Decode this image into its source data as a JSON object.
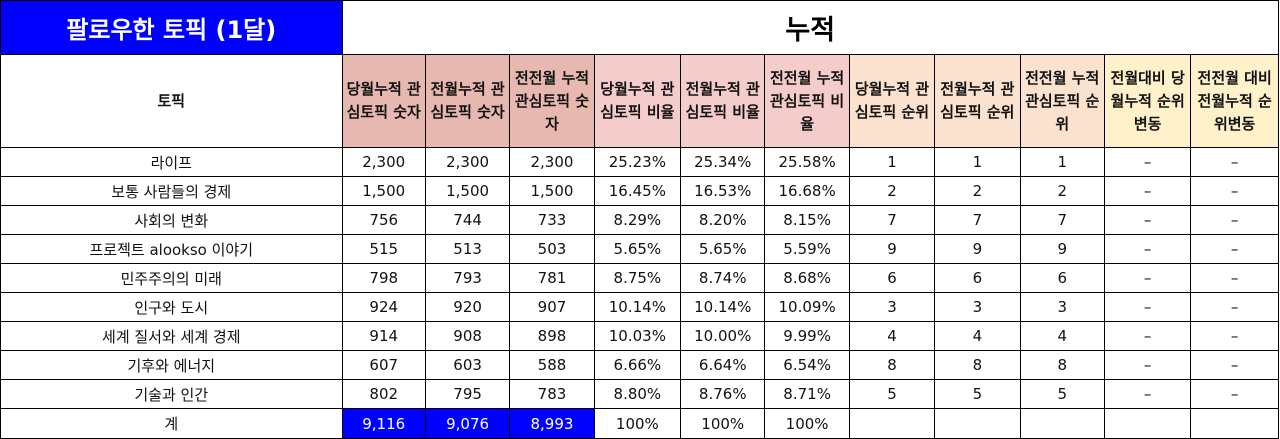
{
  "banner": "팔로우한 토픽 (1달)",
  "section_title": "누적",
  "columns": [
    {
      "key": "topic",
      "label": "토픽",
      "group": "topic"
    },
    {
      "key": "cur_count",
      "label": "당월누적 관심토픽 숫자",
      "group": "count"
    },
    {
      "key": "prev_count",
      "label": "전월누적 관심토픽 숫자",
      "group": "count"
    },
    {
      "key": "prev2_count",
      "label": "전전월 누적 관심토픽 숫자",
      "group": "count"
    },
    {
      "key": "cur_ratio",
      "label": "당월누적 관심토픽 비율",
      "group": "ratio"
    },
    {
      "key": "prev_ratio",
      "label": "전월누적 관심토픽 비율",
      "group": "ratio"
    },
    {
      "key": "prev2_ratio",
      "label": "전전월 누적 관심토픽 비율",
      "group": "ratio"
    },
    {
      "key": "cur_rank",
      "label": "당월누적 관심토픽 순위",
      "group": "rank"
    },
    {
      "key": "prev_rank",
      "label": "전월누적 관심토픽 순위",
      "group": "rank"
    },
    {
      "key": "prev2_rank",
      "label": "전전월 누적 관심토픽 순위",
      "group": "rank"
    },
    {
      "key": "change1",
      "label": "전월대비 당월누적 순위변동",
      "group": "change"
    },
    {
      "key": "change2",
      "label": "전전월 대비 전월누적 순위변동",
      "group": "change"
    }
  ],
  "rows": [
    [
      "라이프",
      "2,300",
      "2,300",
      "2,300",
      "25.23%",
      "25.34%",
      "25.58%",
      "1",
      "1",
      "1",
      "–",
      "–"
    ],
    [
      "보통 사람들의 경제",
      "1,500",
      "1,500",
      "1,500",
      "16.45%",
      "16.53%",
      "16.68%",
      "2",
      "2",
      "2",
      "–",
      "–"
    ],
    [
      "사회의 변화",
      "756",
      "744",
      "733",
      "8.29%",
      "8.20%",
      "8.15%",
      "7",
      "7",
      "7",
      "–",
      "–"
    ],
    [
      "프로젝트 alookso 이야기",
      "515",
      "513",
      "503",
      "5.65%",
      "5.65%",
      "5.59%",
      "9",
      "9",
      "9",
      "–",
      "–"
    ],
    [
      "민주주의의 미래",
      "798",
      "793",
      "781",
      "8.75%",
      "8.74%",
      "8.68%",
      "6",
      "6",
      "6",
      "–",
      "–"
    ],
    [
      "인구와 도시",
      "924",
      "920",
      "907",
      "10.14%",
      "10.14%",
      "10.09%",
      "3",
      "3",
      "3",
      "–",
      "–"
    ],
    [
      "세계 질서와 세계 경제",
      "914",
      "908",
      "898",
      "10.03%",
      "10.00%",
      "9.99%",
      "4",
      "4",
      "4",
      "–",
      "–"
    ],
    [
      "기후와 에너지",
      "607",
      "603",
      "588",
      "6.66%",
      "6.64%",
      "6.54%",
      "8",
      "8",
      "8",
      "–",
      "–"
    ],
    [
      "기술과 인간",
      "802",
      "795",
      "783",
      "8.80%",
      "8.76%",
      "8.71%",
      "5",
      "5",
      "5",
      "–",
      "–"
    ]
  ],
  "total": [
    "계",
    "9,116",
    "9,076",
    "8,993",
    "100%",
    "100%",
    "100%",
    "",
    "",
    "",
    "",
    ""
  ],
  "colors": {
    "banner_bg": "#0000ff",
    "count_header": "#e6b8b0",
    "ratio_header": "#f4cccc",
    "rank_header": "#fbe2cf",
    "change_header": "#fff1c9",
    "total_highlight": "#0000ff"
  }
}
